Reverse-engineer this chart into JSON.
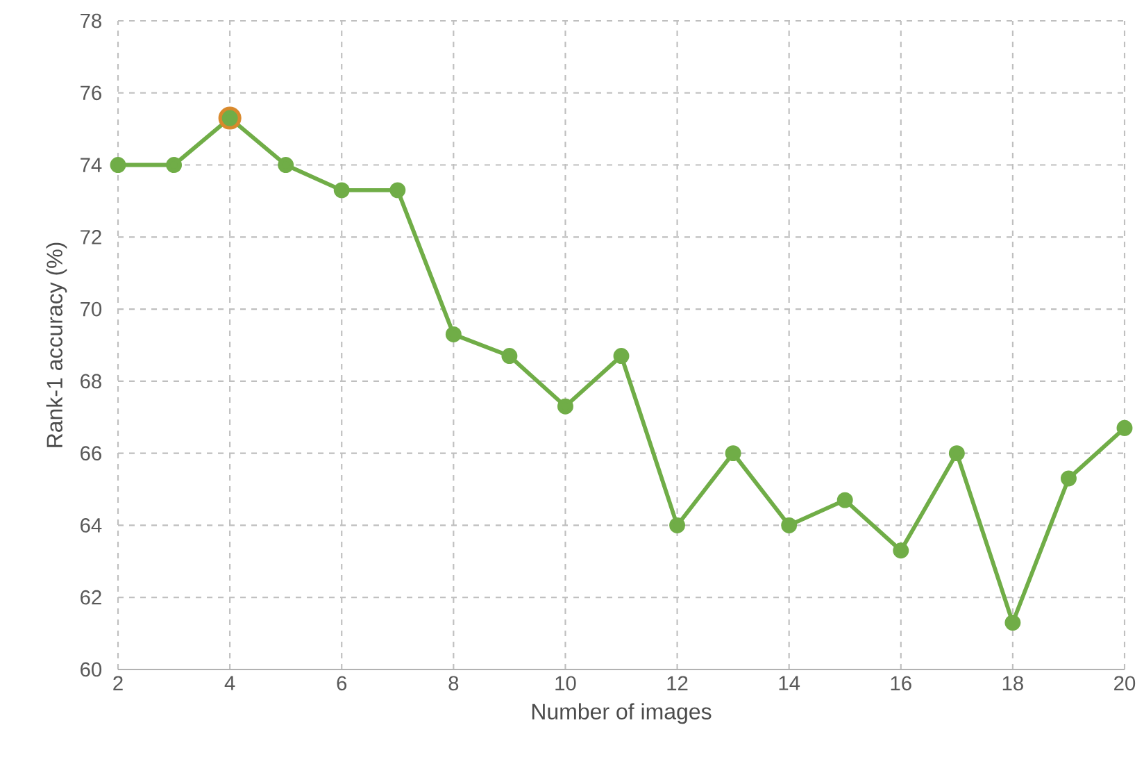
{
  "chart_data": {
    "type": "line",
    "xlabel": "Number of images",
    "ylabel": "Rank-1 accuracy (%)",
    "x": [
      2,
      3,
      4,
      5,
      6,
      7,
      8,
      9,
      10,
      11,
      12,
      13,
      14,
      15,
      16,
      17,
      18,
      19,
      20
    ],
    "series": [
      {
        "color": "#70ad47",
        "values": [
          74,
          74,
          75.3,
          74,
          73.3,
          73.3,
          69.3,
          68.7,
          67.3,
          68.7,
          64,
          66,
          64,
          64.7,
          63.3,
          66,
          61.3,
          65.3,
          66.7
        ]
      },
      {
        "type": "scatter",
        "color": "#d9892c",
        "x": [
          4
        ],
        "values": [
          75.3
        ]
      }
    ],
    "xlim": [
      2,
      20
    ],
    "xticks": [
      2,
      4,
      6,
      8,
      10,
      12,
      14,
      16,
      18,
      20
    ],
    "ylim": [
      60,
      78
    ],
    "yticks": [
      60,
      62,
      64,
      66,
      68,
      70,
      72,
      74,
      76,
      78
    ],
    "grid": true,
    "marker": "circle",
    "line_style": "solid"
  }
}
